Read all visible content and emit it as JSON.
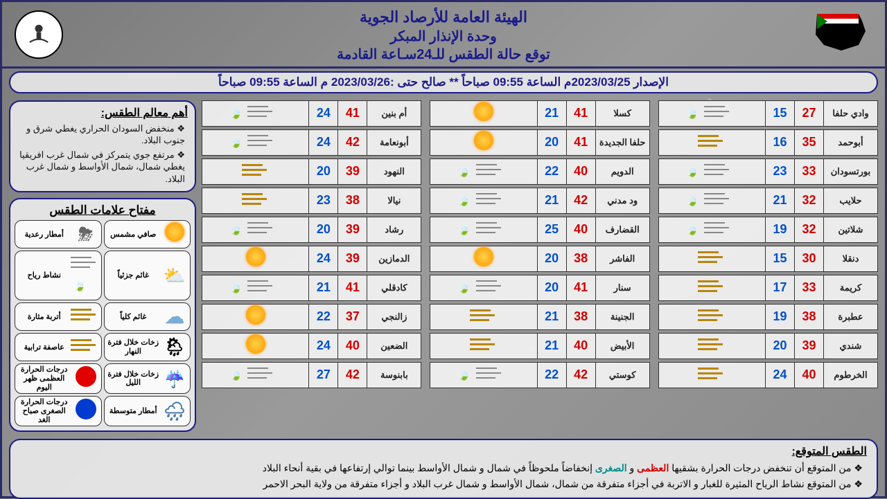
{
  "header": {
    "org": "الهيئة العامة للأرصاد الجوية",
    "unit": "وحدة الإنذار المبكر",
    "title": "توقع حالة الطقس للـ24سـاعة القادمة",
    "logo_left_alt": "شعار الأرصاد",
    "logo_right_alt": "خريطة السودان"
  },
  "issue": "الإصدار  2023/03/25م الساعة 09:55 صباحاً ** صالح حتى :2023/03/26  م الساعة 09:55 صباحاً",
  "columns": [
    [
      {
        "city": "وادي حلفا",
        "hi": 27,
        "lo": 15,
        "icon": "wind-leaf"
      },
      {
        "city": "أبوحمد",
        "hi": 35,
        "lo": 16,
        "icon": "dust"
      },
      {
        "city": "بورتسودان",
        "hi": 33,
        "lo": 23,
        "icon": "wind-leaf"
      },
      {
        "city": "حلايب",
        "hi": 32,
        "lo": 21,
        "icon": "wind-leaf"
      },
      {
        "city": "شلاتين",
        "hi": 32,
        "lo": 19,
        "icon": "wind-leaf"
      },
      {
        "city": "دنقلا",
        "hi": 30,
        "lo": 15,
        "icon": "dust"
      },
      {
        "city": "كريمة",
        "hi": 33,
        "lo": 17,
        "icon": "dust"
      },
      {
        "city": "عطبرة",
        "hi": 38,
        "lo": 19,
        "icon": "dust"
      },
      {
        "city": "شندي",
        "hi": 39,
        "lo": 20,
        "icon": "dust"
      },
      {
        "city": "الخرطوم",
        "hi": 40,
        "lo": 24,
        "icon": "dust"
      }
    ],
    [
      {
        "city": "كسلا",
        "hi": 41,
        "lo": 21,
        "icon": "sun"
      },
      {
        "city": "حلفا الجديدة",
        "hi": 41,
        "lo": 20,
        "icon": "sun"
      },
      {
        "city": "الدويم",
        "hi": 40,
        "lo": 22,
        "icon": "wind-leaf"
      },
      {
        "city": "ود مدني",
        "hi": 42,
        "lo": 21,
        "icon": "wind-leaf"
      },
      {
        "city": "القضارف",
        "hi": 40,
        "lo": 25,
        "icon": "wind-leaf"
      },
      {
        "city": "الفاشر",
        "hi": 38,
        "lo": 20,
        "icon": "sun"
      },
      {
        "city": "سنار",
        "hi": 41,
        "lo": 20,
        "icon": "wind-leaf"
      },
      {
        "city": "الجنينة",
        "hi": 38,
        "lo": 21,
        "icon": "dust"
      },
      {
        "city": "الأبيض",
        "hi": 40,
        "lo": 21,
        "icon": "dust"
      },
      {
        "city": "كوستي",
        "hi": 42,
        "lo": 22,
        "icon": "wind-leaf"
      }
    ],
    [
      {
        "city": "أم بنين",
        "hi": 41,
        "lo": 24,
        "icon": "wind-leaf"
      },
      {
        "city": "أبونعامة",
        "hi": 42,
        "lo": 24,
        "icon": "wind-leaf"
      },
      {
        "city": "النهود",
        "hi": 39,
        "lo": 20,
        "icon": "dust"
      },
      {
        "city": "نيالا",
        "hi": 38,
        "lo": 23,
        "icon": "dust"
      },
      {
        "city": "رشاد",
        "hi": 39,
        "lo": 20,
        "icon": "wind-leaf"
      },
      {
        "city": "الدمازين",
        "hi": 39,
        "lo": 24,
        "icon": "sun"
      },
      {
        "city": "كادقلي",
        "hi": 41,
        "lo": 21,
        "icon": "wind-leaf"
      },
      {
        "city": "زالنجي",
        "hi": 37,
        "lo": 22,
        "icon": "sun"
      },
      {
        "city": "الضعين",
        "hi": 40,
        "lo": 24,
        "icon": "sun"
      },
      {
        "city": "بابنوسة",
        "hi": 42,
        "lo": 27,
        "icon": "wind-leaf"
      }
    ]
  ],
  "highlights": {
    "title": "أهم معالم الطقس:",
    "items": [
      "منخفض السودان الحراري يغطي شرق و جنوب البلاد.",
      "مرتفع جوي يتمركز في شمال غرب افريقيا يغطي شمال، شمال الأواسط و شمال غرب البلاد."
    ]
  },
  "legend": {
    "title": "مفتاح علامات الطقس",
    "items": [
      {
        "label": "صافي مشمس",
        "icon": "sun"
      },
      {
        "label": "أمطار رعدية",
        "icon": "storm"
      },
      {
        "label": "غائم جزئياً",
        "icon": "pcloud"
      },
      {
        "label": "نشاط رياح",
        "icon": "wind-leaf"
      },
      {
        "label": "غائم كلياً",
        "icon": "cloud"
      },
      {
        "label": "أتربة مثارة",
        "icon": "dust"
      },
      {
        "label": "زخات خلال فترة النهار",
        "icon": "rainday"
      },
      {
        "label": "عاصفة ترابية",
        "icon": "dust-storm"
      },
      {
        "label": "زخات خلال فترة الليل",
        "icon": "rainnight"
      },
      {
        "label": "درجات الحرارة العظمى ظهر اليوم",
        "icon": "dot-red"
      },
      {
        "label": "أمطار متوسطة",
        "icon": "rain"
      },
      {
        "label": "درجات الحرارة الصغرى صباح الغد",
        "icon": "dot-blue"
      }
    ]
  },
  "forecast_text": {
    "title": "الطقس المتوقع:",
    "line1_pre": "من المتوقع أن تنخفض درجات الحرارة بشقيها ",
    "line1_hi": "العظمى",
    "line1_and": " و ",
    "line1_lo": "الصغرى",
    "line1_post": " إنخفاضاً ملحوظاً في شمال و شمال الأواسط بينما توالي إرتفاعها في بقية أنحاء البلاد",
    "line2": "من المتوقع نشاط الرياح المثيرة للغبار و الاتربة في أجزاء متفرقة من شمال، شمال الأواسط و شمال غرب البلاد و أجزاء متفرقة من ولاية البحر الاحمر"
  },
  "colors": {
    "frame": "#2a2a6a",
    "header_text": "#1a1a8a",
    "hi": "#d00000",
    "lo": "#0050c8",
    "teal": "#008b8b"
  }
}
